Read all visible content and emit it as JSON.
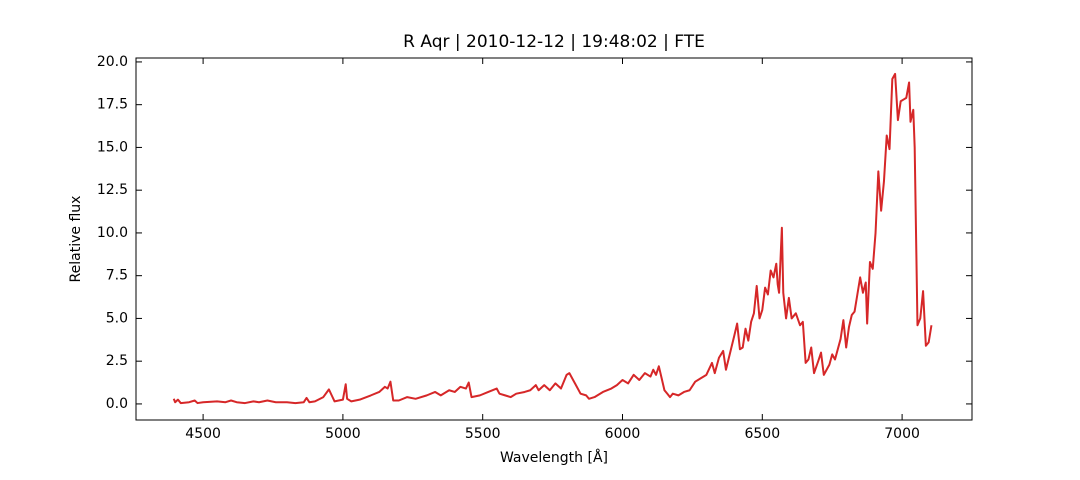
{
  "chart_data": {
    "type": "line",
    "title": "R Aqr | 2010-12-12 | 19:48:02 | FTE",
    "x_label": "Wavelength [Å]",
    "y_label": "Relative flux",
    "xlim": [
      4260,
      7250
    ],
    "ylim": [
      -0.94,
      20.23
    ],
    "xticks": [
      4500,
      5000,
      5500,
      6000,
      6500,
      7000
    ],
    "yticks": [
      {
        "value": 0,
        "label": "0.0"
      },
      2.5,
      {
        "value": 5,
        "label": "5.0"
      },
      7.5,
      {
        "value": 10,
        "label": "10.0"
      },
      12.5,
      {
        "value": 15,
        "label": "15.0"
      },
      17.5,
      {
        "value": 20,
        "label": "20.0"
      }
    ],
    "grid": false,
    "series": [
      {
        "color": "#d62728",
        "x": [
          4395,
          4400,
          4410,
          4420,
          4450,
          4470,
          4480,
          4500,
          4550,
          4580,
          4600,
          4620,
          4650,
          4680,
          4700,
          4730,
          4760,
          4800,
          4830,
          4860,
          4870,
          4880,
          4900,
          4930,
          4950,
          4960,
          4970,
          5000,
          5010,
          5015,
          5030,
          5060,
          5100,
          5130,
          5150,
          5160,
          5170,
          5180,
          5200,
          5230,
          5260,
          5300,
          5330,
          5350,
          5380,
          5400,
          5420,
          5440,
          5450,
          5460,
          5490,
          5520,
          5550,
          5560,
          5580,
          5600,
          5620,
          5650,
          5670,
          5690,
          5700,
          5720,
          5740,
          5760,
          5780,
          5800,
          5810,
          5830,
          5850,
          5870,
          5880,
          5900,
          5930,
          5960,
          5980,
          6000,
          6020,
          6040,
          6060,
          6080,
          6100,
          6110,
          6120,
          6130,
          6140,
          6150,
          6160,
          6170,
          6180,
          6200,
          6220,
          6240,
          6260,
          6280,
          6300,
          6320,
          6330,
          6345,
          6360,
          6370,
          6385,
          6400,
          6410,
          6420,
          6430,
          6440,
          6450,
          6460,
          6470,
          6480,
          6490,
          6500,
          6510,
          6520,
          6530,
          6540,
          6550,
          6555,
          6560,
          6570,
          6575,
          6585,
          6595,
          6605,
          6620,
          6635,
          6645,
          6655,
          6665,
          6675,
          6685,
          6700,
          6710,
          6720,
          6740,
          6750,
          6760,
          6780,
          6790,
          6800,
          6810,
          6820,
          6830,
          6840,
          6850,
          6860,
          6870,
          6875,
          6885,
          6895,
          6905,
          6915,
          6925,
          6935,
          6945,
          6955,
          6965,
          6975,
          6985,
          6995,
          7005,
          7015,
          7025,
          7030,
          7040,
          7045,
          7055,
          7065,
          7075,
          7085,
          7095,
          7105
        ],
        "values": [
          0.3,
          0.1,
          0.25,
          0.05,
          0.1,
          0.2,
          0.05,
          0.1,
          0.15,
          0.1,
          0.2,
          0.1,
          0.05,
          0.15,
          0.1,
          0.2,
          0.1,
          0.1,
          0.05,
          0.1,
          0.35,
          0.1,
          0.15,
          0.4,
          0.85,
          0.5,
          0.15,
          0.25,
          1.15,
          0.3,
          0.15,
          0.25,
          0.5,
          0.7,
          1.0,
          0.9,
          1.3,
          0.2,
          0.2,
          0.4,
          0.3,
          0.5,
          0.7,
          0.5,
          0.8,
          0.7,
          1.0,
          0.9,
          1.25,
          0.4,
          0.5,
          0.7,
          0.9,
          0.6,
          0.5,
          0.4,
          0.6,
          0.7,
          0.8,
          1.1,
          0.8,
          1.1,
          0.8,
          1.2,
          0.9,
          1.7,
          1.8,
          1.2,
          0.6,
          0.5,
          0.3,
          0.4,
          0.7,
          0.9,
          1.1,
          1.4,
          1.2,
          1.7,
          1.4,
          1.8,
          1.6,
          2.0,
          1.7,
          2.2,
          1.5,
          0.8,
          0.6,
          0.4,
          0.6,
          0.5,
          0.7,
          0.8,
          1.3,
          1.5,
          1.7,
          2.4,
          1.8,
          2.7,
          3.1,
          2.0,
          3.0,
          4.0,
          4.7,
          3.2,
          3.3,
          4.4,
          3.7,
          4.8,
          5.3,
          6.9,
          5.0,
          5.5,
          6.8,
          6.4,
          7.8,
          7.4,
          8.2,
          7.0,
          6.5,
          10.3,
          6.5,
          5.0,
          6.2,
          5.0,
          5.3,
          4.6,
          4.8,
          2.4,
          2.6,
          3.3,
          1.8,
          2.5,
          3.0,
          1.7,
          2.3,
          2.9,
          2.6,
          3.8,
          4.9,
          3.3,
          4.5,
          5.2,
          5.4,
          6.4,
          7.4,
          6.5,
          7.1,
          4.7,
          8.3,
          7.9,
          10.0,
          13.6,
          11.3,
          13.0,
          15.7,
          14.9,
          19.0,
          19.3,
          16.6,
          17.7,
          17.8,
          17.9,
          18.8,
          16.5,
          17.2,
          15.0,
          4.6,
          5.0,
          6.6,
          3.4,
          3.6,
          4.6
        ]
      }
    ]
  }
}
